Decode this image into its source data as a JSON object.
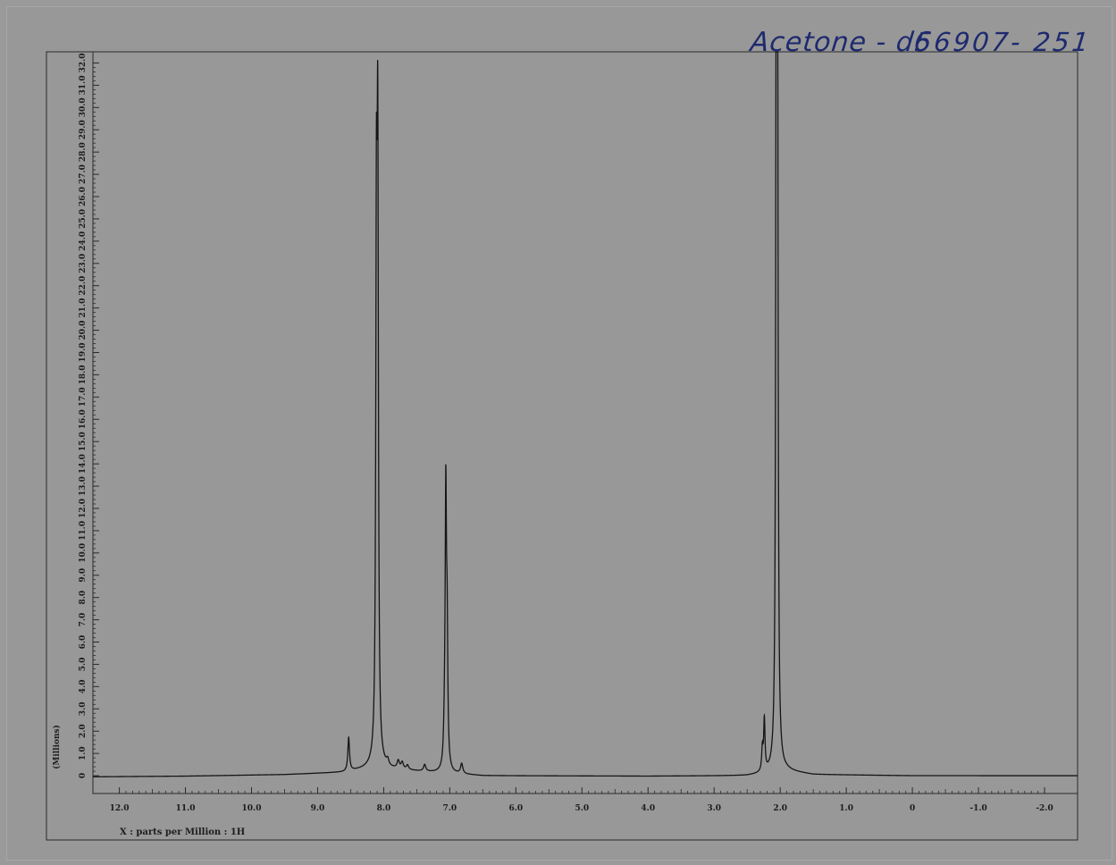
{
  "annotations": {
    "solvent": "Acetone - d6",
    "sample_id": "56907- 251"
  },
  "chart_data": {
    "type": "line",
    "title": "",
    "xlabel": "X : parts per Million : 1H",
    "ylabel": "(Millions)",
    "xlim": [
      12.4,
      -2.5
    ],
    "ylim": [
      -0.8,
      32.5
    ],
    "x_reversed": true,
    "x_ticks": [
      {
        "value": 12.0,
        "label": "12.0"
      },
      {
        "value": 11.0,
        "label": "11.0"
      },
      {
        "value": 10.0,
        "label": "10.0"
      },
      {
        "value": 9.0,
        "label": "9.0"
      },
      {
        "value": 8.0,
        "label": "8.0"
      },
      {
        "value": 7.0,
        "label": "7.0"
      },
      {
        "value": 6.0,
        "label": "6.0"
      },
      {
        "value": 5.0,
        "label": "5.0"
      },
      {
        "value": 4.0,
        "label": "4.0"
      },
      {
        "value": 3.0,
        "label": "3.0"
      },
      {
        "value": 2.0,
        "label": "2.0"
      },
      {
        "value": 1.0,
        "label": "1.0"
      },
      {
        "value": 0,
        "label": "0"
      },
      {
        "value": -1.0,
        "label": "-1.0"
      },
      {
        "value": -2.0,
        "label": "-2.0"
      }
    ],
    "y_ticks": [
      {
        "value": 0,
        "label": "0"
      },
      {
        "value": 1,
        "label": "1.0"
      },
      {
        "value": 2,
        "label": "2.0"
      },
      {
        "value": 3,
        "label": "3.0"
      },
      {
        "value": 4,
        "label": "4.0"
      },
      {
        "value": 5,
        "label": "5.0"
      },
      {
        "value": 6,
        "label": "6.0"
      },
      {
        "value": 7,
        "label": "7.0"
      },
      {
        "value": 8,
        "label": "8.0"
      },
      {
        "value": 9,
        "label": "9.0"
      },
      {
        "value": 10,
        "label": "10.0"
      },
      {
        "value": 11,
        "label": "11.0"
      },
      {
        "value": 12,
        "label": "12.0"
      },
      {
        "value": 13,
        "label": "13.0"
      },
      {
        "value": 14,
        "label": "14.0"
      },
      {
        "value": 15,
        "label": "15.0"
      },
      {
        "value": 16,
        "label": "16.0"
      },
      {
        "value": 17,
        "label": "17.0"
      },
      {
        "value": 18,
        "label": "18.0"
      },
      {
        "value": 19,
        "label": "19.0"
      },
      {
        "value": 20,
        "label": "20.0"
      },
      {
        "value": 21,
        "label": "21.0"
      },
      {
        "value": 22,
        "label": "22.0"
      },
      {
        "value": 23,
        "label": "23.0"
      },
      {
        "value": 24,
        "label": "24.0"
      },
      {
        "value": 25,
        "label": "25.0"
      },
      {
        "value": 26,
        "label": "26.0"
      },
      {
        "value": 27,
        "label": "27.0"
      },
      {
        "value": 28,
        "label": "28.0"
      },
      {
        "value": 29,
        "label": "29.0"
      },
      {
        "value": 30,
        "label": "30.0"
      },
      {
        "value": 31,
        "label": "31.0"
      },
      {
        "value": 32,
        "label": "32.0"
      }
    ],
    "baseline_points": [
      {
        "x": 12.4,
        "y": -0.05
      },
      {
        "x": 11.0,
        "y": -0.02
      },
      {
        "x": 9.5,
        "y": 0.05
      },
      {
        "x": 8.6,
        "y": 0.15
      },
      {
        "x": 8.3,
        "y": 0.3
      },
      {
        "x": 8.1,
        "y": 0.45
      },
      {
        "x": 7.9,
        "y": 0.3
      },
      {
        "x": 7.3,
        "y": 0.15
      },
      {
        "x": 6.5,
        "y": 0.0
      },
      {
        "x": 4.0,
        "y": -0.02
      },
      {
        "x": 2.5,
        "y": 0.0
      },
      {
        "x": 2.1,
        "y": 0.1
      },
      {
        "x": 1.9,
        "y": 0.2
      },
      {
        "x": 1.5,
        "y": 0.05
      },
      {
        "x": 0,
        "y": 0.0
      },
      {
        "x": -2.5,
        "y": 0.0
      }
    ],
    "peaks": [
      {
        "x": 8.53,
        "y": 1.5,
        "w": 0.015
      },
      {
        "x": 8.09,
        "y": 25.5,
        "w": 0.012
      },
      {
        "x": 8.11,
        "y": 22.2,
        "w": 0.012
      },
      {
        "x": 7.94,
        "y": 0.25,
        "w": 0.02
      },
      {
        "x": 7.78,
        "y": 0.35,
        "w": 0.02
      },
      {
        "x": 7.72,
        "y": 0.3,
        "w": 0.02
      },
      {
        "x": 7.64,
        "y": 0.2,
        "w": 0.02
      },
      {
        "x": 7.38,
        "y": 0.3,
        "w": 0.02
      },
      {
        "x": 7.06,
        "y": 12.0,
        "w": 0.012
      },
      {
        "x": 7.04,
        "y": 5.3,
        "w": 0.012
      },
      {
        "x": 7.08,
        "y": 1.2,
        "w": 0.015
      },
      {
        "x": 6.82,
        "y": 0.45,
        "w": 0.02
      },
      {
        "x": 2.24,
        "y": 2.3,
        "w": 0.012
      },
      {
        "x": 2.27,
        "y": 1.0,
        "w": 0.012
      },
      {
        "x": 2.05,
        "y": 32.0,
        "w": 0.01
      },
      {
        "x": 2.06,
        "y": 23.2,
        "w": 0.01
      },
      {
        "x": 2.04,
        "y": 21.2,
        "w": 0.01
      }
    ],
    "dips": [
      {
        "x": 2.01,
        "y": -0.15,
        "w": 0.01
      }
    ],
    "grid": false,
    "legend": "none"
  }
}
